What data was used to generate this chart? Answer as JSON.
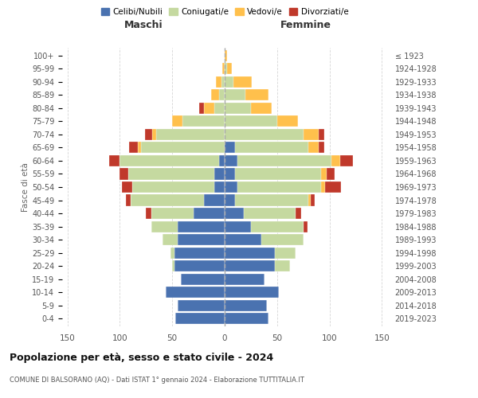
{
  "age_groups": [
    "0-4",
    "5-9",
    "10-14",
    "15-19",
    "20-24",
    "25-29",
    "30-34",
    "35-39",
    "40-44",
    "45-49",
    "50-54",
    "55-59",
    "60-64",
    "65-69",
    "70-74",
    "75-79",
    "80-84",
    "85-89",
    "90-94",
    "95-99",
    "100+"
  ],
  "birth_years": [
    "2019-2023",
    "2014-2018",
    "2009-2013",
    "2004-2008",
    "1999-2003",
    "1994-1998",
    "1989-1993",
    "1984-1988",
    "1979-1983",
    "1974-1978",
    "1969-1973",
    "1964-1968",
    "1959-1963",
    "1954-1958",
    "1949-1953",
    "1944-1948",
    "1939-1943",
    "1934-1938",
    "1929-1933",
    "1924-1928",
    "≤ 1923"
  ],
  "colors": {
    "celibi": "#4a72b0",
    "coniugati": "#c5d9a0",
    "vedovi": "#ffc04c",
    "divorziati": "#c0392b"
  },
  "maschi": {
    "celibi": [
      47,
      45,
      56,
      42,
      48,
      48,
      45,
      45,
      30,
      20,
      10,
      10,
      5,
      0,
      0,
      0,
      0,
      0,
      0,
      0,
      0
    ],
    "coniugati": [
      0,
      0,
      0,
      0,
      2,
      4,
      14,
      25,
      40,
      70,
      78,
      82,
      95,
      80,
      65,
      40,
      10,
      5,
      3,
      0,
      0
    ],
    "vedovi": [
      0,
      0,
      0,
      0,
      0,
      0,
      0,
      0,
      0,
      0,
      0,
      0,
      0,
      3,
      4,
      10,
      10,
      8,
      5,
      2,
      0
    ],
    "divorziati": [
      0,
      0,
      0,
      0,
      0,
      0,
      0,
      0,
      5,
      4,
      10,
      8,
      10,
      8,
      7,
      0,
      4,
      0,
      0,
      0,
      0
    ]
  },
  "femmine": {
    "celibi": [
      42,
      40,
      52,
      38,
      48,
      48,
      35,
      25,
      18,
      10,
      12,
      10,
      12,
      10,
      0,
      0,
      0,
      0,
      0,
      0,
      0
    ],
    "coniugati": [
      0,
      0,
      0,
      0,
      14,
      20,
      40,
      50,
      50,
      70,
      80,
      82,
      90,
      70,
      75,
      50,
      25,
      20,
      8,
      2,
      0
    ],
    "vedovi": [
      0,
      0,
      0,
      0,
      0,
      0,
      0,
      0,
      0,
      2,
      4,
      5,
      8,
      10,
      15,
      20,
      20,
      22,
      18,
      5,
      2
    ],
    "divorziati": [
      0,
      0,
      0,
      0,
      0,
      0,
      0,
      4,
      5,
      4,
      15,
      8,
      12,
      5,
      5,
      0,
      0,
      0,
      0,
      0,
      0
    ]
  },
  "title": "Popolazione per età, sesso e stato civile - 2024",
  "subtitle": "COMUNE DI BALSORANO (AQ) - Dati ISTAT 1° gennaio 2024 - Elaborazione TUTTITALIA.IT",
  "xlabel_maschi": "Maschi",
  "xlabel_femmine": "Femmine",
  "ylabel_left": "Fasce di età",
  "xlim": 155,
  "legend_labels": [
    "Celibi/Nubili",
    "Coniugati/e",
    "Vedovi/e",
    "Divorziati/e"
  ],
  "bg_color": "#ffffff",
  "grid_color": "#cccccc",
  "bar_height": 0.85
}
